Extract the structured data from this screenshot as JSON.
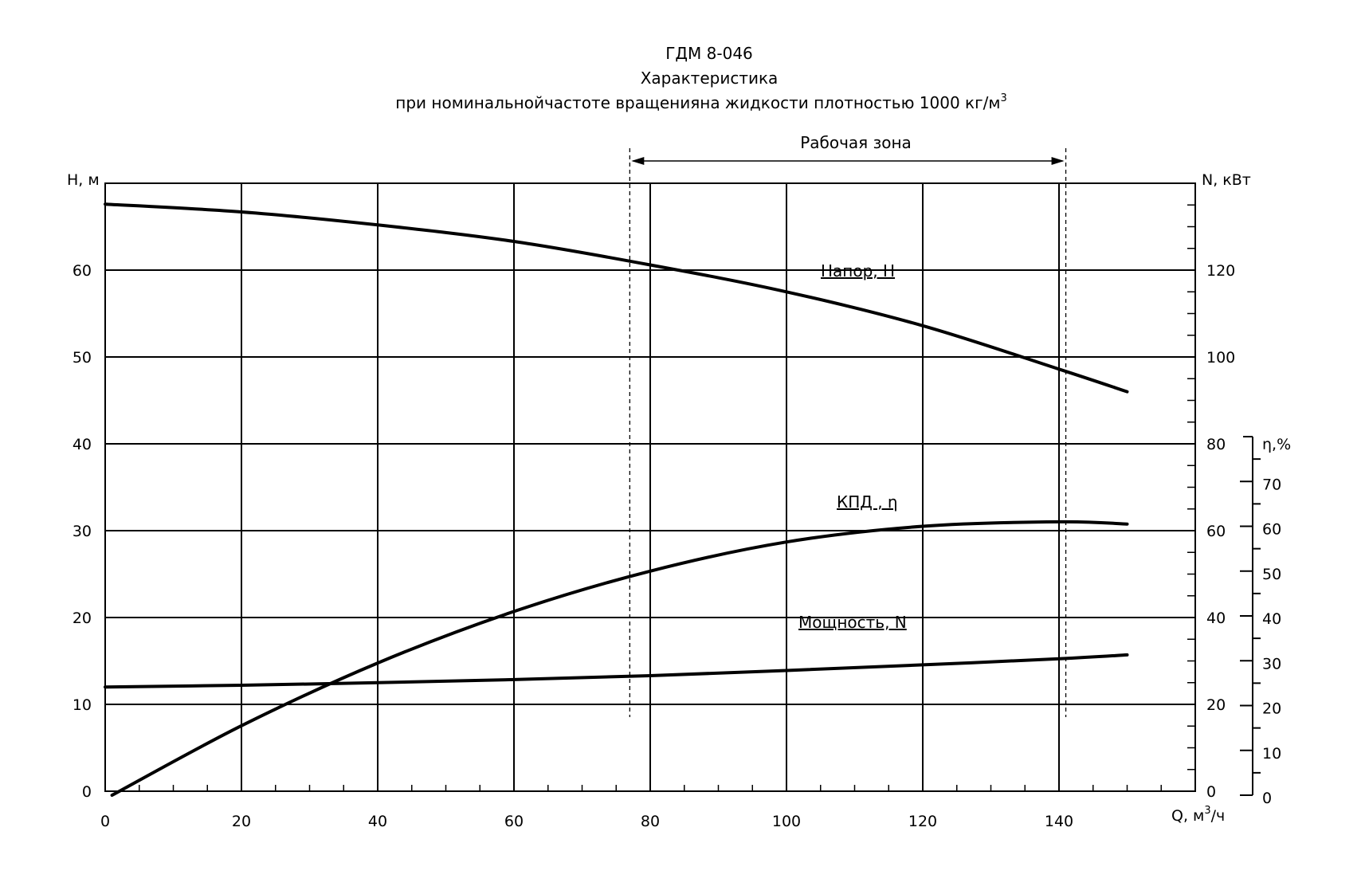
{
  "chart_data": {
    "type": "line",
    "title": "ГДМ 8-046",
    "subtitle": "Характеристика",
    "subtitle2": "при номинальнойчастоте вращенияна жидкости плотностью 1000 кг/м",
    "subtitle2_sup": "3",
    "xlabel": "Q, м",
    "xlabel_sup": "3",
    "xlabel_suffix": "/ч",
    "ylabel_left": "H, м",
    "ylabel_right": "N, кВт",
    "ylabel_eta": "η,%",
    "xlim": [
      0,
      160
    ],
    "ylim_left": [
      0,
      70
    ],
    "ylim_right": [
      0,
      140
    ],
    "ylim_eta": [
      0,
      80
    ],
    "grid": true,
    "x_ticks": [
      "0",
      "20",
      "40",
      "60",
      "80",
      "100",
      "120",
      "140"
    ],
    "y_left_ticks": [
      "0",
      "10",
      "20",
      "30",
      "40",
      "50",
      "60"
    ],
    "y_right_ticks": [
      "0",
      "20",
      "40",
      "60",
      "80",
      "100",
      "120"
    ],
    "eta_ticks": [
      "0",
      "10",
      "20",
      "30",
      "40",
      "50",
      "60",
      "70"
    ],
    "working_zone": {
      "label": "Рабочая зона",
      "x_start": 77,
      "x_end": 141
    },
    "series": [
      {
        "name": "Напор, H",
        "axis": "left",
        "x": [
          0,
          20,
          40,
          60,
          80,
          100,
          120,
          140,
          150
        ],
        "values": [
          67.6,
          66.7,
          65.2,
          63.3,
          60.6,
          57.5,
          53.6,
          48.6,
          46.0
        ]
      },
      {
        "name": "КПД , η",
        "axis": "eta",
        "x": [
          1,
          20,
          40,
          60,
          80,
          100,
          120,
          140,
          150
        ],
        "values": [
          0,
          15.5,
          29.5,
          41.0,
          50.0,
          56.5,
          60.0,
          61.0,
          60.5
        ]
      },
      {
        "name": "Мощность, N",
        "axis": "right",
        "x": [
          0,
          20,
          40,
          60,
          80,
          100,
          120,
          140,
          150
        ],
        "values": [
          24.0,
          24.4,
          25.0,
          25.7,
          26.6,
          27.8,
          29.1,
          30.5,
          31.4
        ]
      }
    ]
  }
}
